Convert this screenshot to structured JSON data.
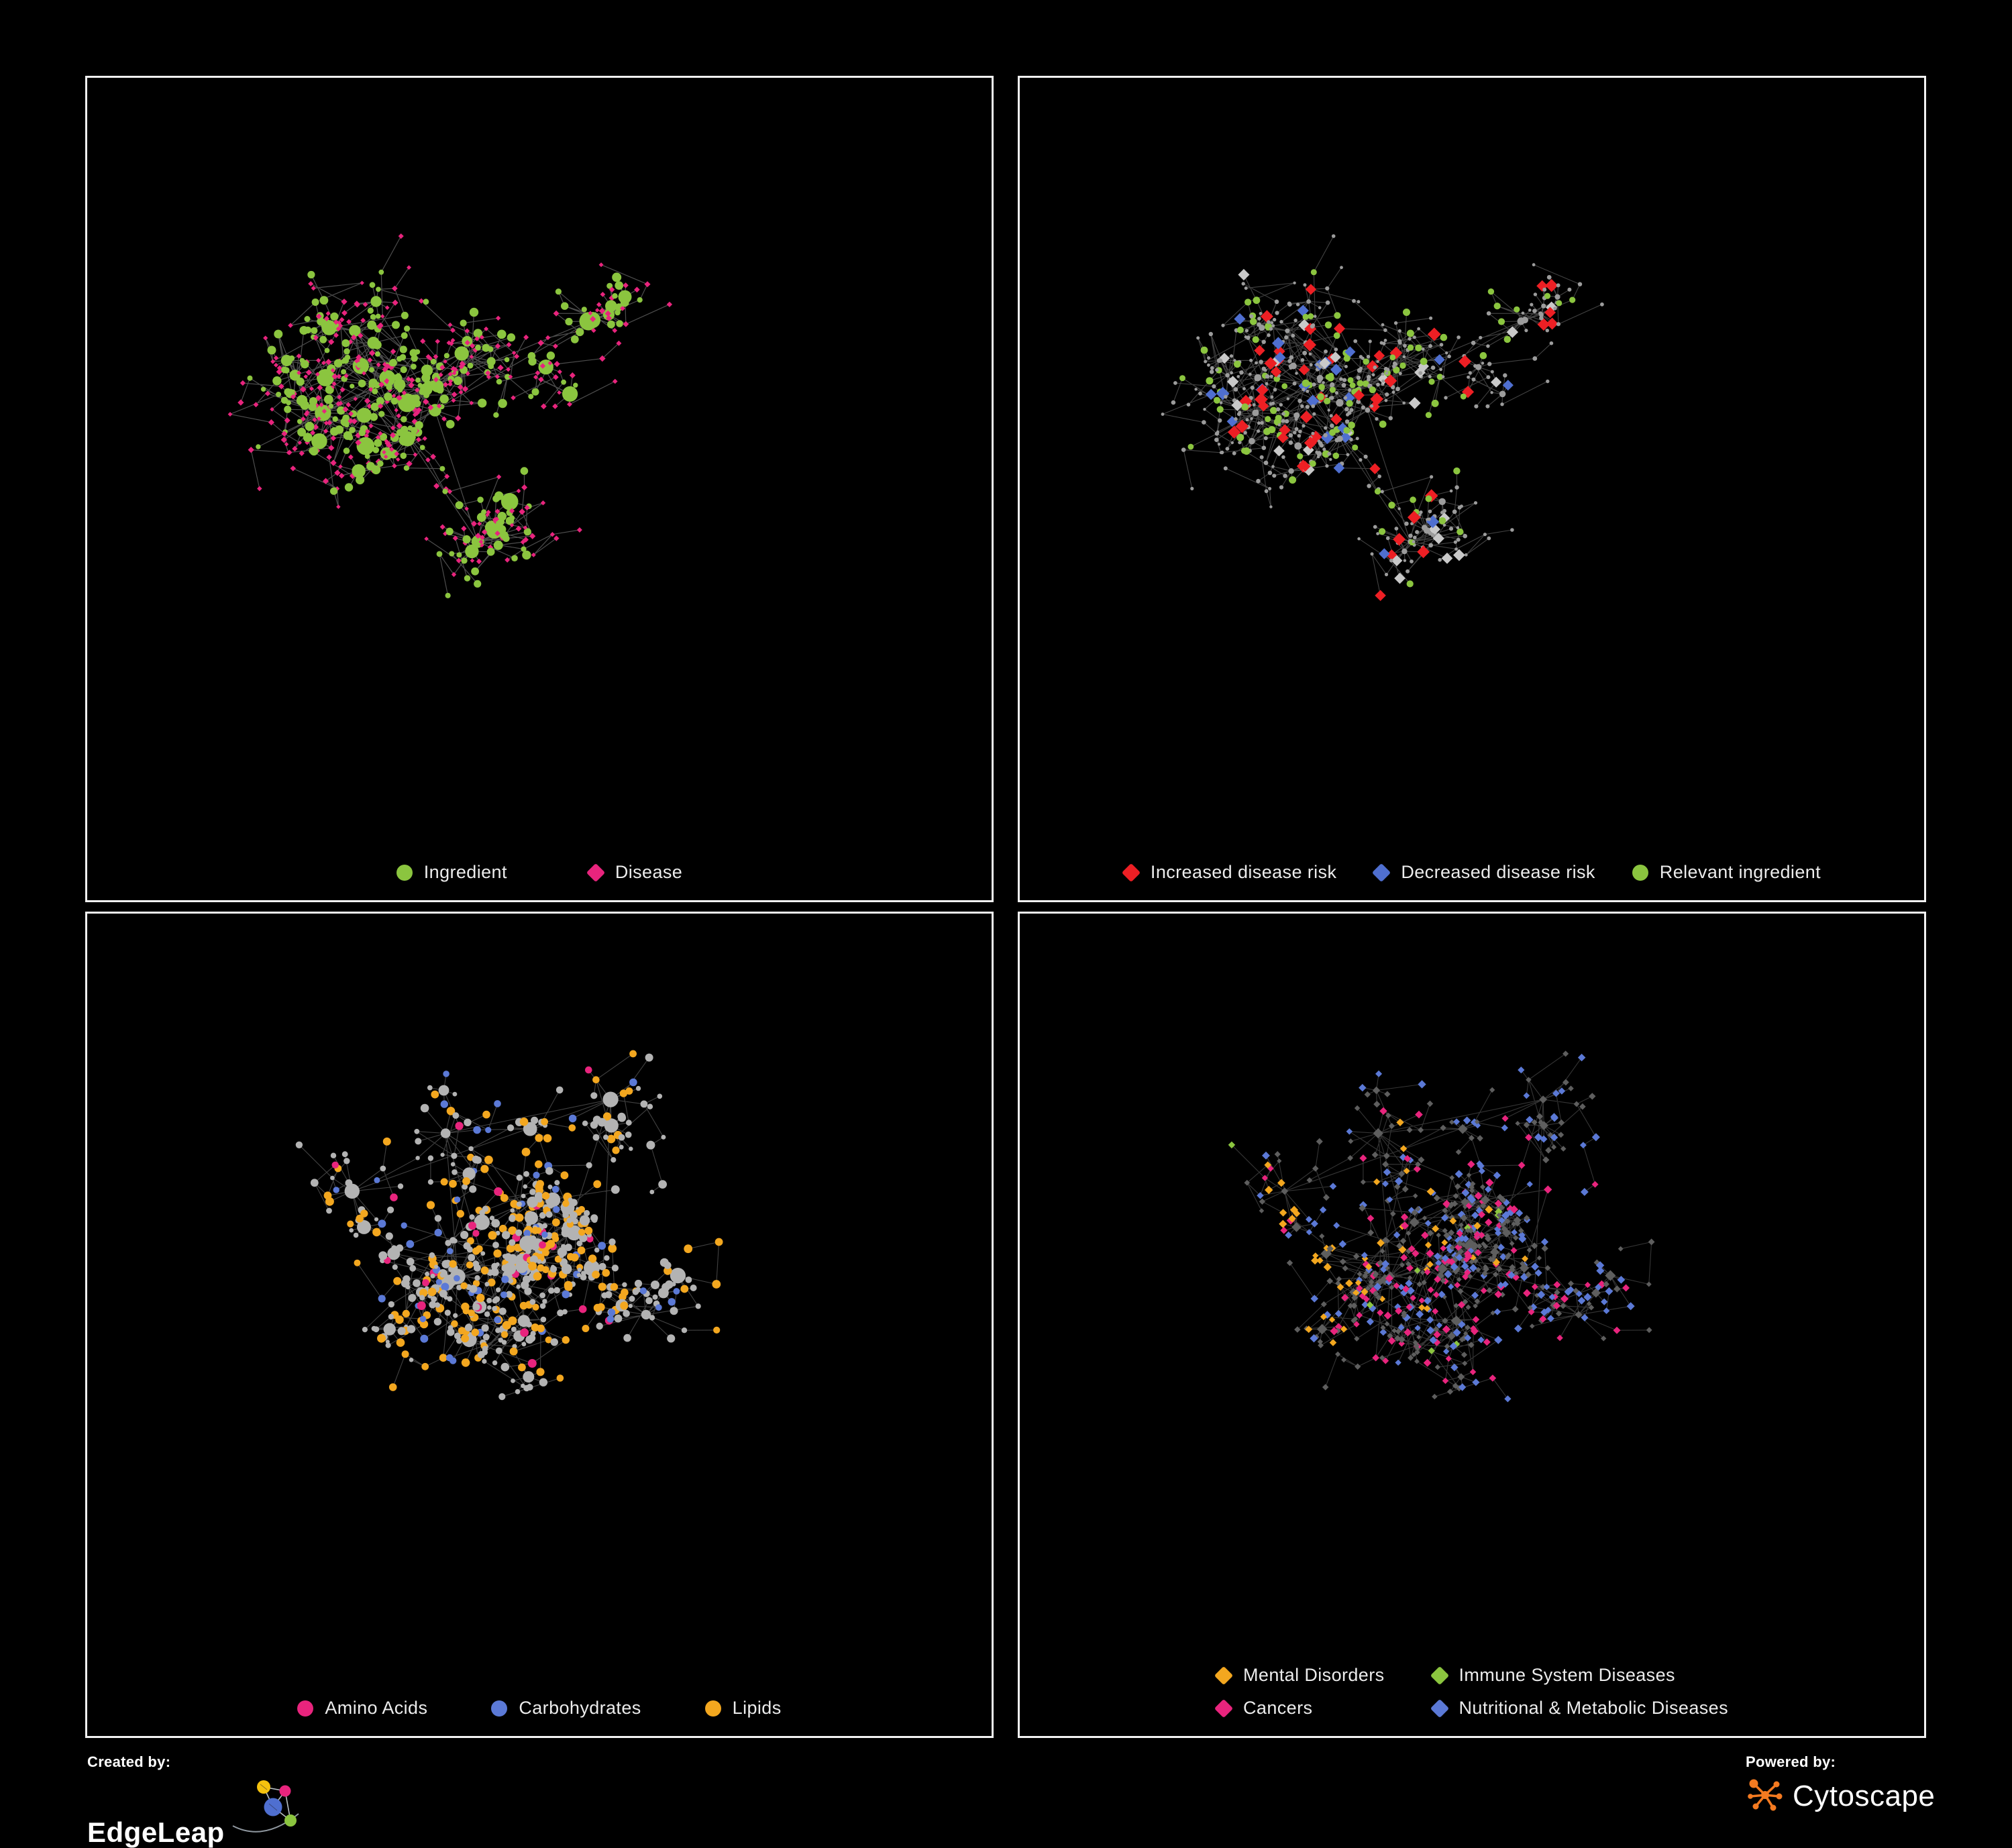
{
  "page": {
    "background": "#000000",
    "panel_border": "#f2f2f2"
  },
  "footer": {
    "created_by": {
      "label": "Created by:",
      "brand": "EdgeLeap"
    },
    "powered_by": {
      "label": "Powered by:",
      "brand": "Cytoscape"
    }
  },
  "colors": {
    "green": "#8bc53f",
    "pink": "#e8247d",
    "red": "#ed1f24",
    "blue": "#4f6fd0",
    "blue_bright": "#5b79d6",
    "orange": "#f3a71f",
    "gray_node": "#a8a8a8",
    "gray_dim": "#5e5e5e",
    "gray_diamond": "#c9c9c9"
  },
  "panels": [
    {
      "name": "ingredient-disease-network",
      "legend": {
        "columns": 1,
        "gap": 120,
        "items": [
          {
            "label": "Ingredient",
            "color": "#8bc53f",
            "shape": "circle"
          },
          {
            "label": "Disease",
            "color": "#e8247d",
            "shape": "diamond"
          }
        ]
      },
      "network": {
        "seed": 11,
        "nodes": 640,
        "hubs": 9,
        "fan": 0.09,
        "cross": 0.16,
        "edgeColor": "#8c8c8c",
        "edgeOpacity": 0.55,
        "edgeWidth": 1.2,
        "hubType": 1,
        "types": [
          {
            "name": "disease",
            "shape": "diamond",
            "color": "#e8247d",
            "weight": 0.6,
            "size": [
              3.2,
              4.8
            ]
          },
          {
            "name": "ingredient",
            "shape": "circle",
            "color": "#8bc53f",
            "weight": 0.4,
            "size": [
              3.6,
              7
            ],
            "hubSize": 11
          }
        ]
      }
    },
    {
      "name": "disease-risk-network",
      "legend": {
        "columns": 1,
        "gap": 55,
        "items": [
          {
            "label": "Increased disease risk",
            "color": "#ed1f24",
            "shape": "diamond"
          },
          {
            "label": "Decreased disease risk",
            "color": "#4f6fd0",
            "shape": "diamond"
          },
          {
            "label": "Relevant ingredient",
            "color": "#8bc53f",
            "shape": "circle"
          }
        ]
      },
      "network": {
        "seed": 11,
        "nodes": 640,
        "hubs": 9,
        "fan": 0.09,
        "cross": 0.16,
        "edgeColor": "#848484",
        "edgeOpacity": 0.5,
        "edgeWidth": 1.1,
        "hubType": 0,
        "types": [
          {
            "name": "node",
            "shape": "circle",
            "color": "#9c9c9c",
            "weight": 0.895,
            "size": [
              2.2,
              3.4
            ],
            "hubSize": 4.5
          },
          {
            "name": "increased-risk",
            "shape": "diamond",
            "color": "#ed1f24",
            "weight": 0.033,
            "size": [
              8,
              10
            ],
            "bias": [
              0.45,
              0.4,
              0.2
            ]
          },
          {
            "name": "decreased-risk",
            "shape": "diamond",
            "color": "#4f6fd0",
            "weight": 0.012,
            "size": [
              8,
              10
            ],
            "bias": [
              0.4,
              0.42,
              0.3
            ]
          },
          {
            "name": "other-association",
            "shape": "diamond",
            "color": "#c9c9c9",
            "weight": 0.012,
            "size": [
              8,
              9
            ],
            "bias": [
              0.45,
              0.48,
              0.24
            ]
          },
          {
            "name": "relevant-ingredient",
            "shape": "circle",
            "color": "#8bc53f",
            "weight": 0.048,
            "size": [
              4.4,
              5.6
            ],
            "bias": [
              0.42,
              0.38,
              0.3
            ]
          }
        ]
      }
    },
    {
      "name": "macronutrient-network",
      "legend": {
        "columns": 1,
        "gap": 95,
        "items": [
          {
            "label": "Amino Acids",
            "color": "#e8247d",
            "shape": "circle"
          },
          {
            "label": "Carbohydrates",
            "color": "#5b79d6",
            "shape": "circle"
          },
          {
            "label": "Lipids",
            "color": "#f3a71f",
            "shape": "circle"
          }
        ]
      },
      "network": {
        "seed": 77,
        "nodes": 660,
        "hubs": 10,
        "fan": 0.09,
        "cross": 0.18,
        "edgeColor": "#9a9a9a",
        "edgeOpacity": 0.42,
        "edgeWidth": 1.1,
        "hubType": 0,
        "types": [
          {
            "name": "node",
            "shape": "circle",
            "color": "#b3b3b3",
            "weight": 0.835,
            "size": [
              3,
              6.5
            ],
            "hubSize": 9.5
          },
          {
            "name": "amino-acids",
            "shape": "circle",
            "color": "#e8247d",
            "weight": 0.045,
            "size": [
              5,
              6.5
            ]
          },
          {
            "name": "carbohydrates",
            "shape": "circle",
            "color": "#5b79d6",
            "weight": 0.028,
            "size": [
              4.5,
              6
            ],
            "bias": [
              0.45,
              0.42,
              0.22
            ]
          },
          {
            "name": "lipids",
            "shape": "circle",
            "color": "#f3a71f",
            "weight": 0.092,
            "size": [
              5,
              6.5
            ],
            "bias": [
              0.42,
              0.33,
              0.28
            ]
          }
        ]
      }
    },
    {
      "name": "disease-category-network",
      "legend": {
        "columns": 2,
        "gap": 70,
        "items": [
          {
            "label": "Mental Disorders",
            "color": "#f3a71f",
            "shape": "diamond"
          },
          {
            "label": "Cancers",
            "color": "#e8247d",
            "shape": "diamond"
          },
          {
            "label": "Immune System Diseases",
            "color": "#8bc53f",
            "shape": "diamond"
          },
          {
            "label": "Nutritional & Metabolic Diseases",
            "color": "#5b79d6",
            "shape": "diamond"
          }
        ]
      },
      "network": {
        "seed": 77,
        "nodes": 680,
        "hubs": 10,
        "fan": 0.09,
        "cross": 0.18,
        "edgeColor": "#6a6a6a",
        "edgeOpacity": 0.5,
        "edgeWidth": 1.1,
        "hubType": 0,
        "types": [
          {
            "name": "node",
            "shape": "diamond",
            "color": "#5e5e5e",
            "weight": 0.7,
            "size": [
              3.6,
              5.2
            ],
            "hubSize": 6.5
          },
          {
            "name": "mental-disorders",
            "shape": "diamond",
            "color": "#f3a71f",
            "weight": 0.112,
            "size": [
              4.6,
              6.2
            ],
            "bias": [
              0.2,
              0.44,
              0.15
            ]
          },
          {
            "name": "cancers",
            "shape": "diamond",
            "color": "#e8247d",
            "weight": 0.07,
            "size": [
              4.6,
              6.2
            ],
            "bias": [
              0.5,
              0.5,
              0.17
            ]
          },
          {
            "name": "immune-system-diseases",
            "shape": "diamond",
            "color": "#8bc53f",
            "weight": 0.013,
            "size": [
              4.6,
              5.8
            ]
          },
          {
            "name": "nutritional-metabolic-diseases",
            "shape": "diamond",
            "color": "#5b79d6",
            "weight": 0.105,
            "size": [
              4.6,
              6.2
            ],
            "bias": [
              0.68,
              0.33,
              0.28
            ]
          }
        ]
      }
    }
  ]
}
